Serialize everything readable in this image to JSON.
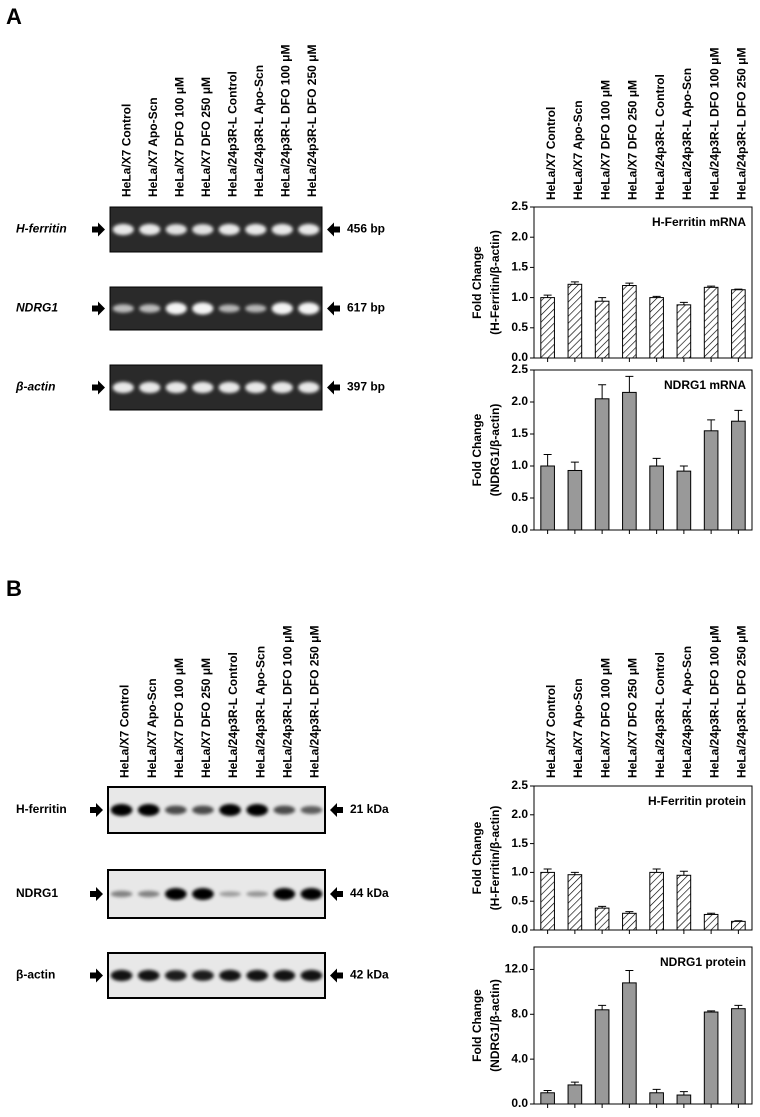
{
  "panel_labels": [
    "A",
    "B"
  ],
  "gels": [
    {
      "lanes": [
        "HeLa/X7 Control",
        "HeLa/X7 Apo-Scn",
        "HeLa/X7 DFO 100 μM",
        "HeLa/X7 DFO 250 μM",
        "HeLa/24p3R-L Control",
        "HeLa/24p3R-L Apo-Scn",
        "HeLa/24p3R-L DFO 100 μM",
        "HeLa/24p3R-L DFO 250 μM"
      ],
      "rows": [
        {
          "label": "H-ferritin",
          "size": "456 bp"
        },
        {
          "label": "NDRG1",
          "size": "617 bp"
        },
        {
          "label": "β-actin",
          "size": "397 bp"
        }
      ]
    },
    {
      "lanes": [
        "HeLa/X7 Control",
        "HeLa/X7 Apo-Scn",
        "HeLa/X7 DFO 100 μM",
        "HeLa/X7 DFO 250 μM",
        "HeLa/24p3R-L Control",
        "HeLa/24p3R-L Apo-Scn",
        "HeLa/24p3R-L DFO 100 μM",
        "HeLa/24p3R-L DFO 250 μM"
      ],
      "rows": [
        {
          "label": "H-ferritin",
          "size": "21 kDa"
        },
        {
          "label": "NDRG1",
          "size": "44 kDa"
        },
        {
          "label": "β-actin",
          "size": "42 kDa"
        }
      ]
    }
  ],
  "chart_data": [
    {
      "type": "bar",
      "title": "H-Ferritin mRNA",
      "ylabel": [
        "Fold Change",
        "(H-Ferritin/β-actin)"
      ],
      "categories": [
        "HeLa/X7 Control",
        "HeLa/X7 Apo-Scn",
        "HeLa/X7 DFO 100 μM",
        "HeLa/X7 DFO 250 μM",
        "HeLa/24p3R-L Control",
        "HeLa/24p3R-L Apo-Scn",
        "HeLa/24p3R-L DFO 100 μM",
        "HeLa/24p3R-L DFO 250 μM"
      ],
      "values": [
        1.0,
        1.22,
        0.94,
        1.2,
        1.0,
        0.88,
        1.17,
        1.13
      ],
      "errors": [
        0.04,
        0.04,
        0.06,
        0.04,
        0.02,
        0.04,
        0.02,
        0.01
      ],
      "fill": "hatched",
      "ylim": [
        0,
        2.5
      ],
      "yticks": [
        {
          "value": 0,
          "label": "0.0"
        },
        {
          "value": 0.5,
          "label": "0.5"
        },
        {
          "value": 1,
          "label": "1.0"
        },
        {
          "value": 1.5,
          "label": "1.5"
        },
        {
          "value": 2,
          "label": "2.0"
        },
        {
          "value": 2.5,
          "label": "2.5"
        }
      ]
    },
    {
      "type": "bar",
      "title": "NDRG1 mRNA",
      "ylabel": [
        "Fold Change",
        "(NDRG1/β-actin)"
      ],
      "values": [
        1.0,
        0.93,
        2.05,
        2.15,
        1.0,
        0.92,
        1.55,
        1.7
      ],
      "errors": [
        0.18,
        0.13,
        0.22,
        0.25,
        0.12,
        0.08,
        0.17,
        0.17
      ],
      "fill": "solid",
      "color": "#999999",
      "ylim": [
        0,
        2.5
      ],
      "yticks": [
        {
          "value": 0,
          "label": "0.0"
        },
        {
          "value": 0.5,
          "label": "0.5"
        },
        {
          "value": 1,
          "label": "1.0"
        },
        {
          "value": 1.5,
          "label": "1.5"
        },
        {
          "value": 2,
          "label": "2.0"
        },
        {
          "value": 2.5,
          "label": "2.5"
        }
      ]
    },
    {
      "type": "bar",
      "title": "H-Ferritin protein",
      "ylabel": [
        "Fold Change",
        "(H-Ferritin/β-actin)"
      ],
      "categories": [
        "HeLa/X7 Control",
        "HeLa/X7 Apo-Scn",
        "HeLa/X7 DFO 100 μM",
        "HeLa/X7 DFO 250 μM",
        "HeLa/24p3R-L Control",
        "HeLa/24p3R-L Apo-Scn",
        "HeLa/24p3R-L DFO 100 μM",
        "HeLa/24p3R-L DFO 250 μM"
      ],
      "values": [
        1.0,
        0.96,
        0.38,
        0.29,
        1.0,
        0.95,
        0.27,
        0.15
      ],
      "errors": [
        0.06,
        0.04,
        0.03,
        0.03,
        0.06,
        0.07,
        0.02,
        0.01
      ],
      "fill": "hatched",
      "ylim": [
        0,
        2.5
      ],
      "yticks": [
        {
          "value": 0,
          "label": "0.0"
        },
        {
          "value": 0.5,
          "label": "0.5"
        },
        {
          "value": 1,
          "label": "1.0"
        },
        {
          "value": 1.5,
          "label": "1.5"
        },
        {
          "value": 2,
          "label": "2.0"
        },
        {
          "value": 2.5,
          "label": "2.5"
        }
      ]
    },
    {
      "type": "bar",
      "title": "NDRG1 protein",
      "ylabel": [
        "Fold Change",
        "(NDRG1/β-actin)"
      ],
      "values": [
        1.0,
        1.7,
        8.4,
        10.8,
        1.0,
        0.8,
        8.2,
        8.5
      ],
      "errors": [
        0.2,
        0.25,
        0.4,
        1.1,
        0.3,
        0.3,
        0.1,
        0.3
      ],
      "fill": "solid",
      "color": "#999999",
      "ylim": [
        0,
        14
      ],
      "yticks": [
        {
          "value": 0,
          "label": "0.0"
        },
        {
          "value": 4,
          "label": "4.0"
        },
        {
          "value": 8,
          "label": "8.0"
        },
        {
          "value": 12,
          "label": "12.0"
        }
      ]
    }
  ]
}
